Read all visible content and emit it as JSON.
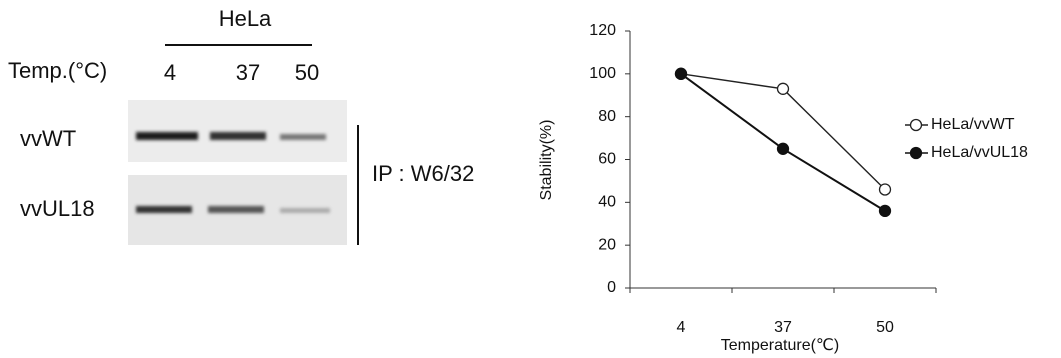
{
  "gel": {
    "cell_line": "HeLa",
    "temp_label": "Temp.(°C)",
    "lanes": [
      "4",
      "37",
      "50"
    ],
    "rows": [
      "vvWT",
      "vvUL18"
    ],
    "ip_label": "IP : W6/32"
  },
  "chart_data": {
    "type": "line",
    "ylabel": "Stability(%)",
    "xlabel": "Temperature(℃)",
    "categories": [
      "4",
      "37",
      "50"
    ],
    "series": [
      {
        "name": "HeLa/vvWT",
        "color": "#222222",
        "marker": "open",
        "values": [
          100,
          93,
          46
        ]
      },
      {
        "name": "HeLa/vvUL18",
        "color": "#111111",
        "marker": "filled",
        "values": [
          100,
          65,
          36
        ]
      }
    ],
    "ylim": [
      0,
      120
    ],
    "yticks": [
      0,
      20,
      40,
      60,
      80,
      100,
      120
    ],
    "grid": false,
    "legend": "right"
  }
}
